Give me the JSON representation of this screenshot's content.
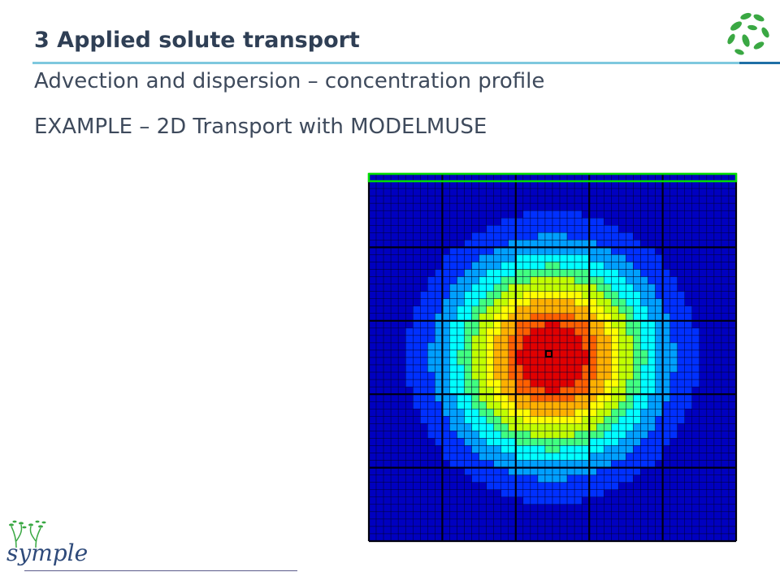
{
  "header": {
    "title": "3  Applied solute transport"
  },
  "subtitles": [
    "Advection and dispersion – concentration profile",
    "EXAMPLE – 2D Transport with MODELMUSE"
  ],
  "logos": {
    "corner": "leaf-cluster-icon",
    "brand_text": "symple"
  },
  "colors": {
    "title_rule": "#7ec8de",
    "accent_rule": "#1f6fa6",
    "title_text": "#2f3f55",
    "leaf_green": "#3aa843"
  },
  "model_grid": {
    "cells": 50,
    "coarse_blocks": 5,
    "plume_center_cell": [
      25,
      25
    ],
    "colormap": [
      "#0000c0",
      "#0030ff",
      "#00a0ff",
      "#00ffff",
      "#40ff80",
      "#c0ff00",
      "#ffff00",
      "#ffb000",
      "#ff6000",
      "#e00000"
    ],
    "top_boundary_color": "#00e000"
  }
}
